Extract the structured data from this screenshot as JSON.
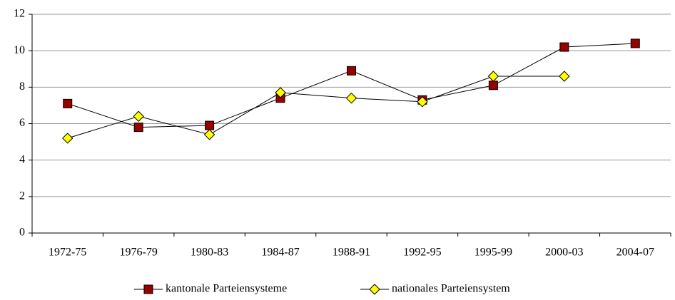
{
  "chart_data": {
    "type": "line",
    "categories": [
      "1972-75",
      "1976-79",
      "1980-83",
      "1984-87",
      "1988-91",
      "1992-95",
      "1995-99",
      "2000-03",
      "2004-07"
    ],
    "series": [
      {
        "name": "kantonale Parteiensysteme",
        "color": "#990000",
        "marker": "square",
        "values": [
          7.1,
          5.8,
          5.9,
          7.4,
          8.9,
          7.3,
          8.1,
          10.2,
          10.4
        ]
      },
      {
        "name": "nationales Parteiensystem",
        "color": "#ffff00",
        "marker": "diamond",
        "values": [
          5.2,
          6.4,
          5.4,
          7.7,
          7.4,
          7.2,
          8.6,
          8.6,
          null
        ]
      }
    ],
    "ylim": [
      0,
      12
    ],
    "yticks": [
      0,
      2,
      4,
      6,
      8,
      10,
      12
    ],
    "grid": true,
    "legend": "bottom"
  }
}
